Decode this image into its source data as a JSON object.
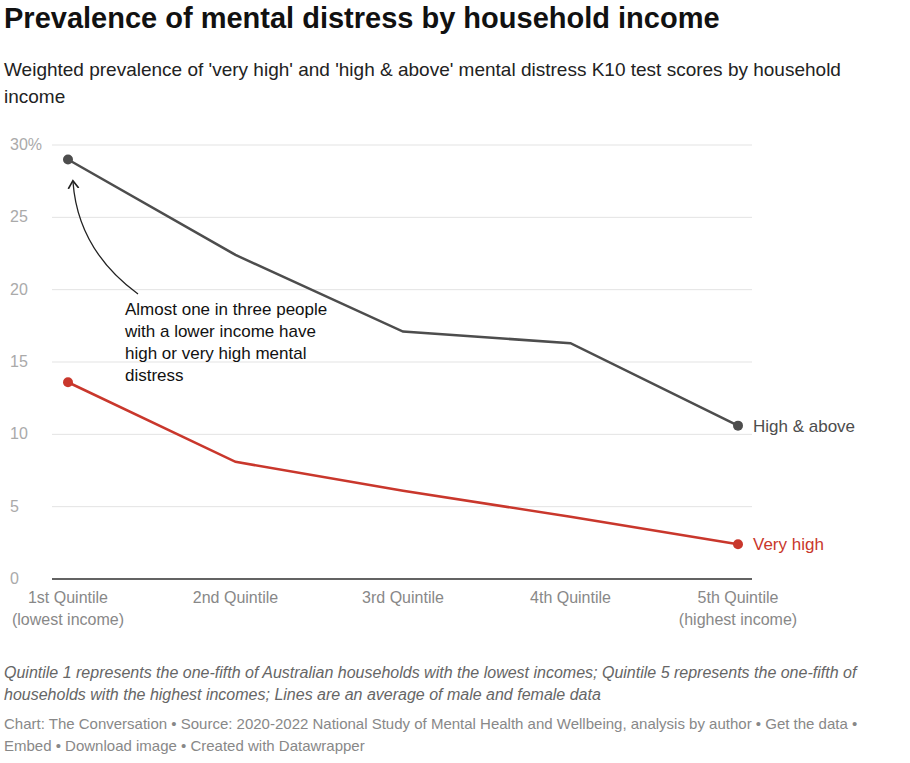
{
  "chart_data": {
    "type": "line",
    "title": "Prevalence of mental distress by household income",
    "subtitle": "Weighted prevalence of 'very high' and 'high & above' mental distress K10 test scores by household income",
    "categories": [
      "1st Quintile (lowest income)",
      "2nd Quintile",
      "3rd Quintile",
      "4th Quintile",
      "5th Quintile (highest income)"
    ],
    "series": [
      {
        "name": "High & above",
        "color": "#4d4d4d",
        "marker": "endpoints",
        "values": [
          29.0,
          22.4,
          17.1,
          16.3,
          10.6
        ]
      },
      {
        "name": "Very high",
        "color": "#c9372c",
        "marker": "endpoints",
        "values": [
          13.6,
          8.1,
          6.1,
          4.3,
          2.4
        ]
      }
    ],
    "ylim": [
      0,
      30
    ],
    "yticks": [
      0,
      5,
      10,
      15,
      20,
      25,
      {
        "value": 30,
        "label": "30%"
      }
    ],
    "grid": true,
    "annotation": "Almost one in three people with a lower income have high or very high mental distress",
    "note": "Quintile 1 represents the one-fifth of Australian households with the lowest incomes; Quintile 5 represents the one-fifth of households with the highest incomes; Lines are an average of male and female data",
    "footer": "Chart: The Conversation • Source: 2020-2022 National Study of Mental Health and Wellbeing, analysis by author • Get the data • Embed • Download image • Created with Datawrapper"
  }
}
